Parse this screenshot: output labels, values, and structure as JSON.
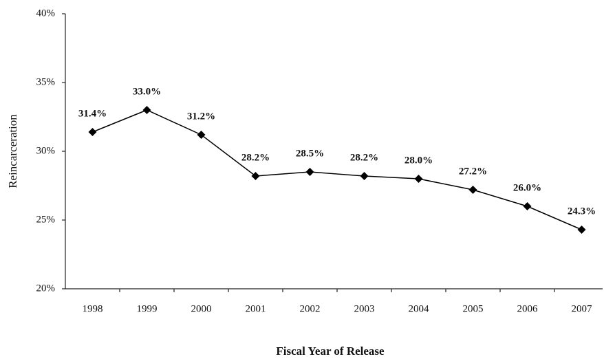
{
  "chart_data": {
    "type": "line",
    "y_label": "Reincarceration",
    "x_label": "Fiscal Year of Release",
    "categories": [
      "1998",
      "1999",
      "2000",
      "2001",
      "2002",
      "2003",
      "2004",
      "2005",
      "2006",
      "2007"
    ],
    "values": [
      31.4,
      33.0,
      31.2,
      28.2,
      28.5,
      28.2,
      28.0,
      27.2,
      26.0,
      24.3
    ],
    "value_labels": [
      "31.4%",
      "33.0%",
      "31.2%",
      "28.2%",
      "28.5%",
      "28.2%",
      "28.0%",
      "27.2%",
      "26.0%",
      "24.3%"
    ],
    "color": "#000000",
    "ylim": [
      20,
      40
    ],
    "yticks": [
      {
        "value": 20,
        "label": "20%"
      },
      {
        "value": 25,
        "label": "25%"
      },
      {
        "value": 30,
        "label": "30%"
      },
      {
        "value": 35,
        "label": "35%"
      },
      {
        "value": 40,
        "label": "40%"
      }
    ],
    "grid": false
  }
}
